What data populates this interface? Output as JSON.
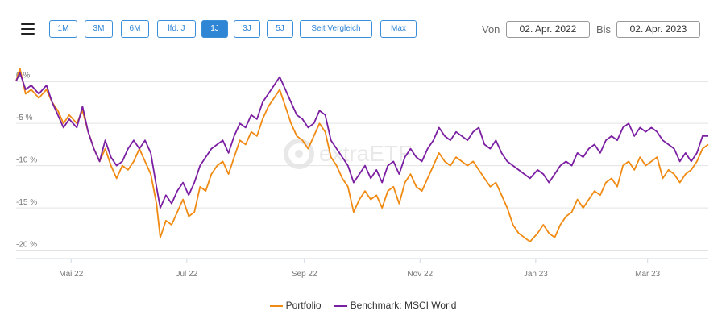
{
  "toolbar": {
    "ranges": [
      {
        "label": "1M",
        "active": false
      },
      {
        "label": "3M",
        "active": false
      },
      {
        "label": "6M",
        "active": false
      },
      {
        "label": "lfd. J",
        "active": false
      },
      {
        "label": "1J",
        "active": true
      },
      {
        "label": "3J",
        "active": false
      },
      {
        "label": "5J",
        "active": false
      },
      {
        "label": "Seit Vergleich",
        "active": false
      },
      {
        "label": "Max",
        "active": false
      }
    ],
    "from_label": "Von",
    "from_value": "02. Apr. 2022",
    "to_label": "Bis",
    "to_value": "02. Apr. 2023"
  },
  "watermark": "extraETF",
  "colors": {
    "portfolio": "#f08a12",
    "benchmark": "#7b1fa2",
    "accent": "#2f86d5"
  },
  "chart_data": {
    "type": "line",
    "title": "",
    "xlabel": "",
    "ylabel": "",
    "x_axis": "date",
    "x_range": [
      "2022-04-02",
      "2023-04-02"
    ],
    "x_ticks": [
      {
        "date": "2022-05-01",
        "label": "Mai 22"
      },
      {
        "date": "2022-07-01",
        "label": "Jul 22"
      },
      {
        "date": "2022-09-01",
        "label": "Sep 22"
      },
      {
        "date": "2022-11-01",
        "label": "Nov 22"
      },
      {
        "date": "2023-01-01",
        "label": "Jan 23"
      },
      {
        "date": "2023-03-01",
        "label": "Mär 23"
      }
    ],
    "y_ticks": [
      {
        "value": 0,
        "label": "0 %"
      },
      {
        "value": -5,
        "label": "-5 %"
      },
      {
        "value": -10,
        "label": "-10 %"
      },
      {
        "value": -15,
        "label": "-15 %"
      },
      {
        "value": -20,
        "label": "-20 %"
      }
    ],
    "ylim": [
      -21,
      1.5
    ],
    "grid": "horizontal",
    "legend_position": "bottom",
    "series": [
      {
        "name": "Portfolio",
        "color": "#f08a12",
        "points": [
          [
            "2022-04-02",
            0.0
          ],
          [
            "2022-04-04",
            1.5
          ],
          [
            "2022-04-07",
            -1.5
          ],
          [
            "2022-04-10",
            -1.0
          ],
          [
            "2022-04-14",
            -2.0
          ],
          [
            "2022-04-18",
            -1.0
          ],
          [
            "2022-04-21",
            -2.5
          ],
          [
            "2022-04-24",
            -3.5
          ],
          [
            "2022-04-27",
            -5.0
          ],
          [
            "2022-04-30",
            -4.0
          ],
          [
            "2022-05-04",
            -5.0
          ],
          [
            "2022-05-07",
            -3.5
          ],
          [
            "2022-05-10",
            -6.0
          ],
          [
            "2022-05-13",
            -8.0
          ],
          [
            "2022-05-16",
            -9.5
          ],
          [
            "2022-05-19",
            -8.0
          ],
          [
            "2022-05-22",
            -10.0
          ],
          [
            "2022-05-25",
            -11.5
          ],
          [
            "2022-05-28",
            -10.0
          ],
          [
            "2022-05-31",
            -10.5
          ],
          [
            "2022-06-03",
            -9.5
          ],
          [
            "2022-06-06",
            -8.0
          ],
          [
            "2022-06-09",
            -9.5
          ],
          [
            "2022-06-12",
            -11.0
          ],
          [
            "2022-06-15",
            -14.5
          ],
          [
            "2022-06-17",
            -18.5
          ],
          [
            "2022-06-20",
            -16.5
          ],
          [
            "2022-06-23",
            -17.0
          ],
          [
            "2022-06-26",
            -15.5
          ],
          [
            "2022-06-29",
            -14.0
          ],
          [
            "2022-07-02",
            -16.0
          ],
          [
            "2022-07-05",
            -15.5
          ],
          [
            "2022-07-08",
            -12.5
          ],
          [
            "2022-07-11",
            -13.0
          ],
          [
            "2022-07-14",
            -11.0
          ],
          [
            "2022-07-17",
            -10.0
          ],
          [
            "2022-07-20",
            -9.5
          ],
          [
            "2022-07-23",
            -11.0
          ],
          [
            "2022-07-26",
            -9.0
          ],
          [
            "2022-07-29",
            -7.0
          ],
          [
            "2022-08-01",
            -7.5
          ],
          [
            "2022-08-04",
            -6.0
          ],
          [
            "2022-08-07",
            -6.5
          ],
          [
            "2022-08-10",
            -4.5
          ],
          [
            "2022-08-13",
            -3.0
          ],
          [
            "2022-08-16",
            -2.0
          ],
          [
            "2022-08-19",
            -1.0
          ],
          [
            "2022-08-22",
            -3.0
          ],
          [
            "2022-08-25",
            -5.0
          ],
          [
            "2022-08-28",
            -6.5
          ],
          [
            "2022-08-31",
            -7.0
          ],
          [
            "2022-09-03",
            -8.0
          ],
          [
            "2022-09-06",
            -6.5
          ],
          [
            "2022-09-09",
            -5.0
          ],
          [
            "2022-09-12",
            -6.0
          ],
          [
            "2022-09-15",
            -9.0
          ],
          [
            "2022-09-18",
            -10.0
          ],
          [
            "2022-09-21",
            -11.5
          ],
          [
            "2022-09-24",
            -12.5
          ],
          [
            "2022-09-27",
            -15.5
          ],
          [
            "2022-09-30",
            -14.0
          ],
          [
            "2022-10-03",
            -13.0
          ],
          [
            "2022-10-06",
            -14.0
          ],
          [
            "2022-10-09",
            -13.5
          ],
          [
            "2022-10-12",
            -15.0
          ],
          [
            "2022-10-15",
            -13.0
          ],
          [
            "2022-10-18",
            -12.5
          ],
          [
            "2022-10-21",
            -14.5
          ],
          [
            "2022-10-24",
            -12.0
          ],
          [
            "2022-10-27",
            -11.0
          ],
          [
            "2022-10-30",
            -12.5
          ],
          [
            "2022-11-02",
            -13.0
          ],
          [
            "2022-11-05",
            -11.5
          ],
          [
            "2022-11-08",
            -10.0
          ],
          [
            "2022-11-11",
            -8.5
          ],
          [
            "2022-11-14",
            -9.5
          ],
          [
            "2022-11-17",
            -10.0
          ],
          [
            "2022-11-20",
            -9.0
          ],
          [
            "2022-11-23",
            -9.5
          ],
          [
            "2022-11-26",
            -10.0
          ],
          [
            "2022-11-29",
            -9.5
          ],
          [
            "2022-12-02",
            -10.5
          ],
          [
            "2022-12-05",
            -11.5
          ],
          [
            "2022-12-08",
            -12.5
          ],
          [
            "2022-12-11",
            -12.0
          ],
          [
            "2022-12-14",
            -13.5
          ],
          [
            "2022-12-17",
            -15.0
          ],
          [
            "2022-12-20",
            -17.0
          ],
          [
            "2022-12-23",
            -18.0
          ],
          [
            "2022-12-26",
            -18.5
          ],
          [
            "2022-12-29",
            -19.0
          ],
          [
            "2023-01-02",
            -18.0
          ],
          [
            "2023-01-05",
            -17.0
          ],
          [
            "2023-01-08",
            -18.0
          ],
          [
            "2023-01-11",
            -18.5
          ],
          [
            "2023-01-14",
            -17.0
          ],
          [
            "2023-01-17",
            -16.0
          ],
          [
            "2023-01-20",
            -15.5
          ],
          [
            "2023-01-23",
            -14.0
          ],
          [
            "2023-01-26",
            -15.0
          ],
          [
            "2023-01-29",
            -14.0
          ],
          [
            "2023-02-01",
            -13.0
          ],
          [
            "2023-02-04",
            -13.5
          ],
          [
            "2023-02-07",
            -12.0
          ],
          [
            "2023-02-10",
            -11.5
          ],
          [
            "2023-02-13",
            -12.5
          ],
          [
            "2023-02-16",
            -10.0
          ],
          [
            "2023-02-19",
            -9.5
          ],
          [
            "2023-02-22",
            -10.5
          ],
          [
            "2023-02-25",
            -9.0
          ],
          [
            "2023-02-28",
            -10.0
          ],
          [
            "2023-03-03",
            -9.5
          ],
          [
            "2023-03-06",
            -9.0
          ],
          [
            "2023-03-09",
            -11.5
          ],
          [
            "2023-03-12",
            -10.5
          ],
          [
            "2023-03-15",
            -11.0
          ],
          [
            "2023-03-18",
            -12.0
          ],
          [
            "2023-03-21",
            -11.0
          ],
          [
            "2023-03-24",
            -10.5
          ],
          [
            "2023-03-27",
            -9.5
          ],
          [
            "2023-03-30",
            -8.0
          ],
          [
            "2023-04-02",
            -7.5
          ]
        ]
      },
      {
        "name": "Benchmark: MSCI World",
        "color": "#7b1fa2",
        "points": [
          [
            "2022-04-02",
            0.0
          ],
          [
            "2022-04-04",
            1.0
          ],
          [
            "2022-04-07",
            -1.0
          ],
          [
            "2022-04-10",
            -0.5
          ],
          [
            "2022-04-14",
            -1.5
          ],
          [
            "2022-04-18",
            -0.5
          ],
          [
            "2022-04-21",
            -2.5
          ],
          [
            "2022-04-24",
            -4.0
          ],
          [
            "2022-04-27",
            -5.5
          ],
          [
            "2022-04-30",
            -4.5
          ],
          [
            "2022-05-04",
            -5.5
          ],
          [
            "2022-05-07",
            -3.0
          ],
          [
            "2022-05-10",
            -6.0
          ],
          [
            "2022-05-13",
            -8.0
          ],
          [
            "2022-05-16",
            -9.5
          ],
          [
            "2022-05-19",
            -7.0
          ],
          [
            "2022-05-22",
            -9.0
          ],
          [
            "2022-05-25",
            -10.0
          ],
          [
            "2022-05-28",
            -9.5
          ],
          [
            "2022-05-31",
            -8.0
          ],
          [
            "2022-06-03",
            -7.0
          ],
          [
            "2022-06-06",
            -8.0
          ],
          [
            "2022-06-09",
            -7.0
          ],
          [
            "2022-06-12",
            -8.5
          ],
          [
            "2022-06-15",
            -12.5
          ],
          [
            "2022-06-17",
            -15.0
          ],
          [
            "2022-06-20",
            -13.5
          ],
          [
            "2022-06-23",
            -14.5
          ],
          [
            "2022-06-26",
            -13.0
          ],
          [
            "2022-06-29",
            -12.0
          ],
          [
            "2022-07-02",
            -13.5
          ],
          [
            "2022-07-05",
            -12.0
          ],
          [
            "2022-07-08",
            -10.0
          ],
          [
            "2022-07-11",
            -9.0
          ],
          [
            "2022-07-14",
            -8.0
          ],
          [
            "2022-07-17",
            -7.5
          ],
          [
            "2022-07-20",
            -7.0
          ],
          [
            "2022-07-23",
            -8.5
          ],
          [
            "2022-07-26",
            -6.5
          ],
          [
            "2022-07-29",
            -5.0
          ],
          [
            "2022-08-01",
            -5.5
          ],
          [
            "2022-08-04",
            -4.0
          ],
          [
            "2022-08-07",
            -4.5
          ],
          [
            "2022-08-10",
            -2.5
          ],
          [
            "2022-08-13",
            -1.5
          ],
          [
            "2022-08-16",
            -0.5
          ],
          [
            "2022-08-19",
            0.5
          ],
          [
            "2022-08-22",
            -1.0
          ],
          [
            "2022-08-25",
            -2.5
          ],
          [
            "2022-08-28",
            -4.0
          ],
          [
            "2022-08-31",
            -4.5
          ],
          [
            "2022-09-03",
            -5.5
          ],
          [
            "2022-09-06",
            -5.0
          ],
          [
            "2022-09-09",
            -3.5
          ],
          [
            "2022-09-12",
            -4.0
          ],
          [
            "2022-09-15",
            -7.0
          ],
          [
            "2022-09-18",
            -8.0
          ],
          [
            "2022-09-21",
            -9.0
          ],
          [
            "2022-09-24",
            -10.0
          ],
          [
            "2022-09-27",
            -12.0
          ],
          [
            "2022-09-30",
            -11.0
          ],
          [
            "2022-10-03",
            -10.0
          ],
          [
            "2022-10-06",
            -11.5
          ],
          [
            "2022-10-09",
            -10.5
          ],
          [
            "2022-10-12",
            -12.0
          ],
          [
            "2022-10-15",
            -10.0
          ],
          [
            "2022-10-18",
            -9.5
          ],
          [
            "2022-10-21",
            -11.0
          ],
          [
            "2022-10-24",
            -9.0
          ],
          [
            "2022-10-27",
            -8.0
          ],
          [
            "2022-10-30",
            -9.0
          ],
          [
            "2022-11-02",
            -9.5
          ],
          [
            "2022-11-05",
            -8.0
          ],
          [
            "2022-11-08",
            -7.0
          ],
          [
            "2022-11-11",
            -5.5
          ],
          [
            "2022-11-14",
            -6.5
          ],
          [
            "2022-11-17",
            -7.0
          ],
          [
            "2022-11-20",
            -6.0
          ],
          [
            "2022-11-23",
            -6.5
          ],
          [
            "2022-11-26",
            -7.0
          ],
          [
            "2022-11-29",
            -6.0
          ],
          [
            "2022-12-02",
            -5.5
          ],
          [
            "2022-12-05",
            -7.5
          ],
          [
            "2022-12-08",
            -8.0
          ],
          [
            "2022-12-11",
            -7.0
          ],
          [
            "2022-12-14",
            -8.5
          ],
          [
            "2022-12-17",
            -9.5
          ],
          [
            "2022-12-20",
            -10.0
          ],
          [
            "2022-12-23",
            -10.5
          ],
          [
            "2022-12-26",
            -11.0
          ],
          [
            "2022-12-29",
            -11.5
          ],
          [
            "2023-01-02",
            -10.5
          ],
          [
            "2023-01-05",
            -11.0
          ],
          [
            "2023-01-08",
            -12.0
          ],
          [
            "2023-01-11",
            -11.0
          ],
          [
            "2023-01-14",
            -10.0
          ],
          [
            "2023-01-17",
            -9.5
          ],
          [
            "2023-01-20",
            -10.0
          ],
          [
            "2023-01-23",
            -8.5
          ],
          [
            "2023-01-26",
            -9.0
          ],
          [
            "2023-01-29",
            -8.0
          ],
          [
            "2023-02-01",
            -7.5
          ],
          [
            "2023-02-04",
            -8.5
          ],
          [
            "2023-02-07",
            -7.0
          ],
          [
            "2023-02-10",
            -6.5
          ],
          [
            "2023-02-13",
            -7.0
          ],
          [
            "2023-02-16",
            -5.5
          ],
          [
            "2023-02-19",
            -5.0
          ],
          [
            "2023-02-22",
            -6.5
          ],
          [
            "2023-02-25",
            -5.5
          ],
          [
            "2023-02-28",
            -6.0
          ],
          [
            "2023-03-03",
            -5.5
          ],
          [
            "2023-03-06",
            -6.0
          ],
          [
            "2023-03-09",
            -7.0
          ],
          [
            "2023-03-12",
            -7.5
          ],
          [
            "2023-03-15",
            -8.0
          ],
          [
            "2023-03-18",
            -9.5
          ],
          [
            "2023-03-21",
            -8.5
          ],
          [
            "2023-03-24",
            -9.5
          ],
          [
            "2023-03-27",
            -8.5
          ],
          [
            "2023-03-30",
            -6.5
          ],
          [
            "2023-04-02",
            -6.5
          ]
        ]
      }
    ]
  },
  "legend": [
    {
      "label": "Portfolio",
      "color": "#f08a12"
    },
    {
      "label": "Benchmark: MSCI World",
      "color": "#7b1fa2"
    }
  ]
}
